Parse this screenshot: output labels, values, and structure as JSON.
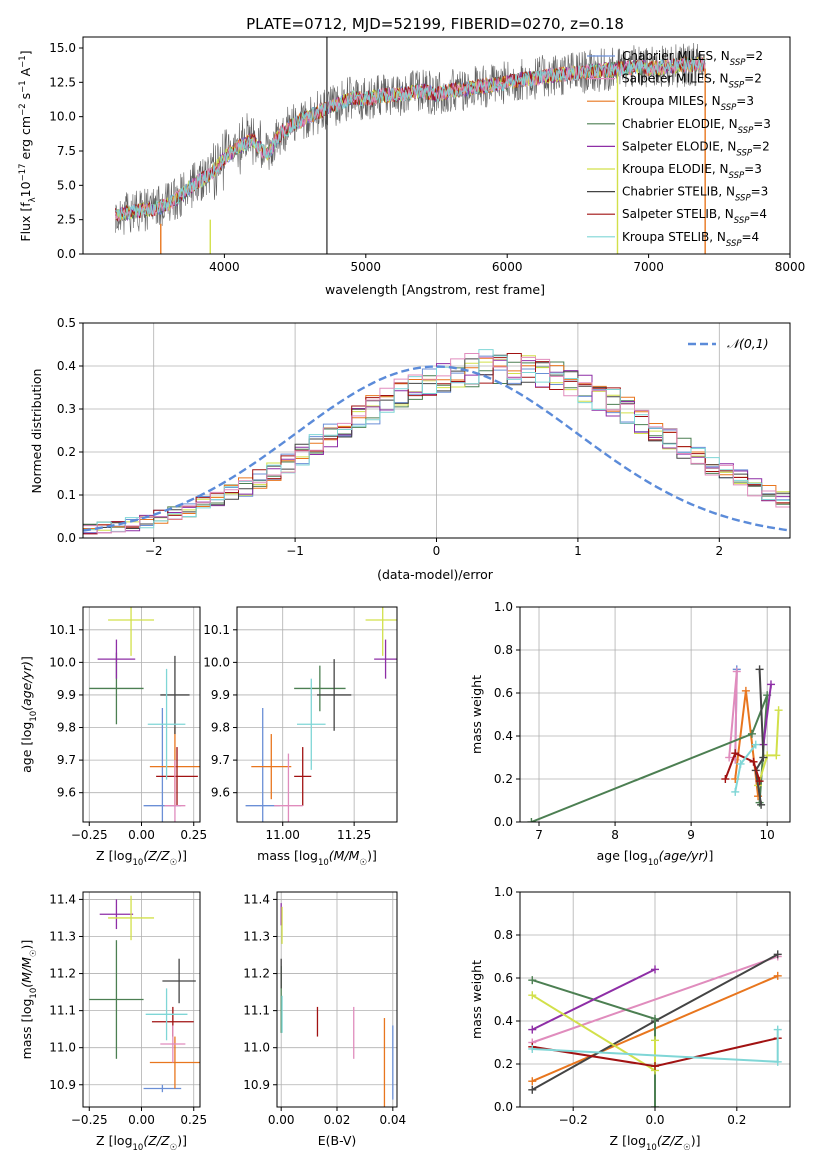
{
  "colors": [
    "#6b8fd6",
    "#e8761e",
    "#4c7f52",
    "#8e2ea6",
    "#d2e04a",
    "#444444",
    "#a11212",
    "#7fd6d6",
    "#e08cbd"
  ],
  "chart_data": [
    {
      "type": "line",
      "title": "PLATE=0712, MJD=52199, FIBERID=0270, z=0.18",
      "xlabel": "wavelength [Angstrom, rest frame]",
      "ylabel": "Flux [f_λ10^-17 erg cm^-2 s^-1 A^-1]",
      "xlim": [
        3000,
        8000
      ],
      "ylim": [
        0,
        15.8
      ],
      "xticks": [
        4000,
        5000,
        6000,
        7000,
        8000
      ],
      "yticks": [
        0.0,
        2.5,
        5.0,
        7.5,
        10.0,
        12.5,
        15.0
      ],
      "grid": false,
      "legend_position": "top-right",
      "legend": [
        {
          "name": "Chabrier MILES",
          "nssp": "2",
          "color_index": 0
        },
        {
          "name": "Salpeter MILES",
          "nssp": "2",
          "color_index": 8
        },
        {
          "name": "Kroupa MILES",
          "nssp": "3",
          "color_index": 1
        },
        {
          "name": "Chabrier ELODIE",
          "nssp": "3",
          "color_index": 2
        },
        {
          "name": "Salpeter ELODIE",
          "nssp": "2",
          "color_index": 3
        },
        {
          "name": "Kroupa ELODIE",
          "nssp": "3",
          "color_index": 4
        },
        {
          "name": "Chabrier STELIB",
          "nssp": "3",
          "color_index": 5
        },
        {
          "name": "Salpeter STELIB",
          "nssp": "4",
          "color_index": 6
        },
        {
          "name": "Kroupa STELIB",
          "nssp": "4",
          "color_index": 7
        }
      ],
      "spectrum_envelope": {
        "x": [
          3200,
          3300,
          3400,
          3500,
          3600,
          3700,
          3800,
          3900,
          4000,
          4100,
          4200,
          4300,
          4400,
          4500,
          4600,
          4700,
          4800,
          4900,
          5000,
          5100,
          5200,
          5300,
          5400,
          5500,
          5600,
          5700,
          5800,
          5900,
          6000,
          6100,
          6200,
          6300,
          6400,
          6500,
          6600,
          6700,
          6800,
          6900,
          7000,
          7100,
          7200,
          7300,
          7400
        ],
        "y": [
          2.8,
          3.0,
          3.2,
          3.3,
          3.6,
          4.3,
          5.2,
          5.8,
          7.0,
          7.8,
          8.3,
          7.2,
          8.8,
          9.5,
          10.0,
          10.5,
          10.9,
          11.4,
          11.3,
          11.5,
          11.6,
          11.7,
          11.9,
          11.6,
          11.9,
          12.0,
          12.2,
          12.3,
          12.5,
          12.7,
          12.8,
          13.0,
          13.1,
          13.2,
          13.3,
          13.4,
          13.5,
          13.6,
          13.5,
          13.6,
          13.7,
          13.8,
          13.8
        ]
      },
      "spikes": [
        {
          "x": 3550,
          "y0": 0,
          "y1": 2.2,
          "color_index": 1
        },
        {
          "x": 3900,
          "y0": 0,
          "y1": 2.5,
          "color_index": 4
        },
        {
          "x": 4725,
          "y0": 0,
          "y1": 15.8,
          "color_index": 5
        },
        {
          "x": 6780,
          "y0": 0,
          "y1": 13.0,
          "color_index": 4
        },
        {
          "x": 7400,
          "y0": 0,
          "y1": 13.5,
          "color_index": 1
        }
      ]
    },
    {
      "type": "histogram",
      "xlabel": "(data-model)/error",
      "ylabel": "Normed distribution",
      "xlim": [
        -2.5,
        2.5
      ],
      "ylim": [
        0,
        0.5
      ],
      "xticks": [
        -2,
        -1,
        0,
        1,
        2
      ],
      "yticks": [
        0.0,
        0.1,
        0.2,
        0.3,
        0.4,
        0.5
      ],
      "grid": true,
      "legend_position": "top-right",
      "legend": [
        {
          "name": "𝒩(0,1)",
          "style": "dashed"
        }
      ],
      "bin_width": 0.1,
      "bin_start": -2.5,
      "base_density": [
        0.018,
        0.022,
        0.027,
        0.033,
        0.04,
        0.048,
        0.056,
        0.066,
        0.079,
        0.09,
        0.104,
        0.119,
        0.136,
        0.154,
        0.171,
        0.194,
        0.213,
        0.236,
        0.255,
        0.276,
        0.297,
        0.316,
        0.333,
        0.349,
        0.363,
        0.376,
        0.386,
        0.393,
        0.398,
        0.399,
        0.398,
        0.393,
        0.386,
        0.376,
        0.363,
        0.349,
        0.333,
        0.316,
        0.297,
        0.276,
        0.255,
        0.236,
        0.213,
        0.194,
        0.171,
        0.154,
        0.136,
        0.119,
        0.104,
        0.09,
        0.079,
        0.066,
        0.056,
        0.048,
        0.04,
        0.033,
        0.027,
        0.022,
        0.018,
        0.014
      ]
    },
    {
      "type": "errorbar",
      "xlabel": "Z [log10(Z/Z☉)]",
      "ylabel": "age [log10(age/yr)]",
      "xlim": [
        -0.28,
        0.28
      ],
      "ylim": [
        9.51,
        10.17
      ],
      "xticks": [
        "-0.25",
        "0.00",
        "0.25"
      ],
      "yticks": [
        "9.6",
        "9.7",
        "9.8",
        "9.9",
        "10.0",
        "10.1"
      ],
      "points": [
        {
          "x": 0.1,
          "y": 9.56,
          "xerr": 0.09,
          "yerr": 0.3,
          "c": 0
        },
        {
          "x": 0.16,
          "y": 9.68,
          "xerr": 0.12,
          "yerr": 0.12,
          "c": 1
        },
        {
          "x": -0.12,
          "y": 9.92,
          "xerr": 0.13,
          "yerr": 0.11,
          "c": 2
        },
        {
          "x": -0.12,
          "y": 10.01,
          "xerr": 0.09,
          "yerr": 0.06,
          "c": 3
        },
        {
          "x": -0.05,
          "y": 10.13,
          "xerr": 0.11,
          "yerr": 0.11,
          "c": 4
        },
        {
          "x": 0.16,
          "y": 9.9,
          "xerr": 0.07,
          "yerr": 0.12,
          "c": 5
        },
        {
          "x": 0.17,
          "y": 9.65,
          "xerr": 0.1,
          "yerr": 0.09,
          "c": 6
        },
        {
          "x": 0.12,
          "y": 9.81,
          "xerr": 0.09,
          "yerr": 0.17,
          "c": 7
        },
        {
          "x": 0.16,
          "y": 9.56,
          "xerr": 0.05,
          "yerr": 0.14,
          "c": 8
        }
      ]
    },
    {
      "type": "errorbar",
      "xlabel": "mass [log10(M/M☉)]",
      "ylabel": "",
      "xlim": [
        10.84,
        11.4
      ],
      "ylim": [
        9.51,
        10.17
      ],
      "xticks": [
        "11.00",
        "11.25"
      ],
      "yticks": [
        "9.6",
        "9.7",
        "9.8",
        "9.9",
        "10.0",
        "10.1"
      ],
      "points": [
        {
          "x": 10.93,
          "y": 9.56,
          "xerr": 0.06,
          "yerr": 0.3,
          "c": 0
        },
        {
          "x": 10.96,
          "y": 9.68,
          "xerr": 0.07,
          "yerr": 0.1,
          "c": 1
        },
        {
          "x": 11.13,
          "y": 9.92,
          "xerr": 0.09,
          "yerr": 0.07,
          "c": 2
        },
        {
          "x": 11.36,
          "y": 10.01,
          "xerr": 0.04,
          "yerr": 0.06,
          "c": 3
        },
        {
          "x": 11.35,
          "y": 10.13,
          "xerr": 0.06,
          "yerr": 0.11,
          "c": 4
        },
        {
          "x": 11.18,
          "y": 9.9,
          "xerr": 0.06,
          "yerr": 0.11,
          "c": 5
        },
        {
          "x": 11.07,
          "y": 9.65,
          "xerr": 0.03,
          "yerr": 0.09,
          "c": 6
        },
        {
          "x": 11.1,
          "y": 9.81,
          "xerr": 0.05,
          "yerr": 0.14,
          "c": 7
        },
        {
          "x": 11.02,
          "y": 9.56,
          "xerr": 0.05,
          "yerr": 0.16,
          "c": 8
        }
      ]
    },
    {
      "type": "line",
      "xlabel": "age [log10(age/yr)]",
      "ylabel": "mass weight",
      "xlim": [
        6.75,
        10.3
      ],
      "ylim": [
        0,
        1.0
      ],
      "xticks": [
        "7",
        "8",
        "9",
        "10"
      ],
      "yticks": [
        "0.0",
        "0.2",
        "0.4",
        "0.6",
        "0.8",
        "1.0"
      ],
      "grid": true,
      "series": [
        {
          "c": 0,
          "x": [
            9.58,
            9.6
          ],
          "y": [
            0.29,
            0.71
          ]
        },
        {
          "c": 8,
          "x": [
            9.5,
            9.6,
            9.58
          ],
          "y": [
            0.3,
            0.7,
            0.29
          ]
        },
        {
          "c": 1,
          "x": [
            9.58,
            9.72,
            9.88
          ],
          "y": [
            0.2,
            0.61,
            0.12
          ]
        },
        {
          "c": 2,
          "x": [
            6.9,
            9.8,
            10.0,
            9.9
          ],
          "y": [
            0.0,
            0.41,
            0.59,
            0.09
          ]
        },
        {
          "c": 3,
          "x": [
            9.95,
            10.05
          ],
          "y": [
            0.36,
            0.64
          ]
        },
        {
          "c": 4,
          "x": [
            9.88,
            10.0,
            10.12,
            10.15
          ],
          "y": [
            0.17,
            0.31,
            0.31,
            0.52
          ]
        },
        {
          "c": 5,
          "x": [
            9.92,
            9.85,
            9.95,
            9.9
          ],
          "y": [
            0.08,
            0.24,
            0.3,
            0.71
          ]
        },
        {
          "c": 6,
          "x": [
            9.45,
            9.58,
            9.82,
            9.9
          ],
          "y": [
            0.2,
            0.32,
            0.28,
            0.19
          ]
        },
        {
          "c": 7,
          "x": [
            9.58,
            9.65,
            9.85
          ],
          "y": [
            0.14,
            0.27,
            0.36
          ]
        }
      ]
    },
    {
      "type": "errorbar",
      "xlabel": "Z [log10(Z/Z☉)]",
      "ylabel": "mass [log10(M/M☉)]",
      "xlim": [
        -0.28,
        0.28
      ],
      "ylim": [
        10.84,
        11.42
      ],
      "xticks": [
        "-0.25",
        "0.00",
        "0.25"
      ],
      "yticks": [
        "10.9",
        "11.0",
        "11.1",
        "11.2",
        "11.3",
        "11.4"
      ],
      "points": [
        {
          "x": 0.1,
          "y": 10.89,
          "xerr": 0.09,
          "yerr": 0.01,
          "c": 0
        },
        {
          "x": 0.16,
          "y": 10.96,
          "xerr": 0.12,
          "yerr": 0.07,
          "c": 1
        },
        {
          "x": -0.12,
          "y": 11.13,
          "xerr": 0.13,
          "yerr": 0.16,
          "c": 2
        },
        {
          "x": -0.12,
          "y": 11.36,
          "xerr": 0.08,
          "yerr": 0.04,
          "c": 3
        },
        {
          "x": -0.05,
          "y": 11.35,
          "xerr": 0.11,
          "yerr": 0.06,
          "c": 4
        },
        {
          "x": 0.18,
          "y": 11.18,
          "xerr": 0.08,
          "yerr": 0.06,
          "c": 5
        },
        {
          "x": 0.15,
          "y": 11.07,
          "xerr": 0.1,
          "yerr": 0.04,
          "c": 6
        },
        {
          "x": 0.12,
          "y": 11.09,
          "xerr": 0.1,
          "yerr": 0.07,
          "c": 7
        },
        {
          "x": 0.15,
          "y": 11.01,
          "xerr": 0.06,
          "yerr": 0.05,
          "c": 8
        }
      ]
    },
    {
      "type": "errorbar",
      "xlabel": "E(B-V)",
      "ylabel": "",
      "xlim": [
        -0.0015,
        0.0415
      ],
      "ylim": [
        10.84,
        11.42
      ],
      "xticks": [
        "0.00",
        "0.02",
        "0.04"
      ],
      "yticks": [
        "10.9",
        "11.0",
        "11.1",
        "11.2",
        "11.3",
        "11.4"
      ],
      "points": [
        {
          "x": 0.04,
          "y": 10.96,
          "xerr": 0,
          "yerr": 0.1,
          "c": 0
        },
        {
          "x": 0.037,
          "y": 10.96,
          "xerr": 0,
          "yerr": 0.12,
          "c": 1
        },
        {
          "x": 0.0,
          "y": 11.13,
          "xerr": 0,
          "yerr": 0.09,
          "c": 2
        },
        {
          "x": 0.0,
          "y": 11.36,
          "xerr": 0,
          "yerr": 0.03,
          "c": 3
        },
        {
          "x": 0.0003,
          "y": 11.33,
          "xerr": 0,
          "yerr": 0.05,
          "c": 4
        },
        {
          "x": 0.0,
          "y": 11.2,
          "xerr": 0,
          "yerr": 0.04,
          "c": 5
        },
        {
          "x": 0.013,
          "y": 11.07,
          "xerr": 0,
          "yerr": 0.04,
          "c": 6
        },
        {
          "x": 0.0003,
          "y": 11.09,
          "xerr": 0,
          "yerr": 0.05,
          "c": 7
        },
        {
          "x": 0.026,
          "y": 11.04,
          "xerr": 0,
          "yerr": 0.07,
          "c": 8
        }
      ]
    },
    {
      "type": "line",
      "xlabel": "Z [log10(Z/Z☉)]",
      "ylabel": "mass weight",
      "xlim": [
        -0.33,
        0.33
      ],
      "ylim": [
        0,
        1.0
      ],
      "xticks": [
        "-0.2",
        "0.0",
        "0.2"
      ],
      "yticks": [
        "0.0",
        "0.2",
        "0.4",
        "0.6",
        "0.8",
        "1.0"
      ],
      "grid": true,
      "series": [
        {
          "c": 8,
          "x": [
            -0.3,
            0.3
          ],
          "y": [
            0.3,
            0.7
          ]
        },
        {
          "c": 1,
          "x": [
            -0.3,
            0.3
          ],
          "y": [
            0.12,
            0.61
          ]
        },
        {
          "c": 5,
          "x": [
            -0.3,
            0.0,
            0.3
          ],
          "y": [
            0.08,
            0.4,
            0.71
          ]
        },
        {
          "c": 2,
          "x": [
            -0.3,
            0.0,
            0.0
          ],
          "y": [
            0.59,
            0.41,
            0.0
          ]
        },
        {
          "c": 3,
          "x": [
            -0.3,
            0.0
          ],
          "y": [
            0.36,
            0.64
          ]
        },
        {
          "c": 4,
          "x": [
            -0.3,
            0.0,
            0.0
          ],
          "y": [
            0.52,
            0.17,
            0.31
          ]
        },
        {
          "c": 6,
          "x": [
            -0.3,
            0.0,
            0.3
          ],
          "y": [
            0.28,
            0.19,
            0.32
          ]
        },
        {
          "c": 7,
          "x": [
            -0.3,
            0.3,
            0.3
          ],
          "y": [
            0.27,
            0.21,
            0.36
          ]
        }
      ]
    }
  ]
}
